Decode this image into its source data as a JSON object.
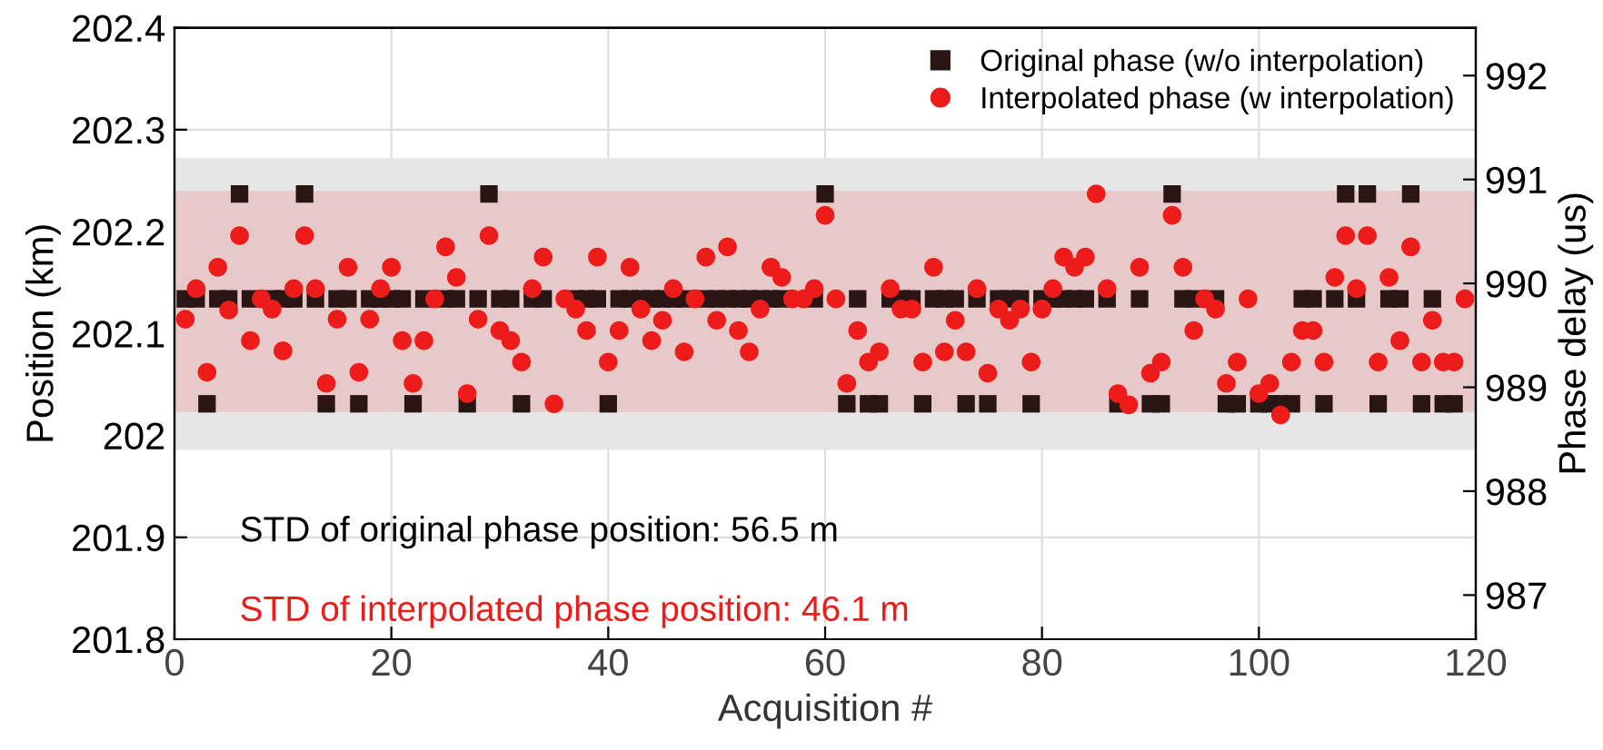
{
  "chart_data": {
    "type": "scatter",
    "xlabel": "Acquisition #",
    "ylabel": "Position (km)",
    "y2label": "Phase delay (us)",
    "x": [
      1,
      2,
      3,
      4,
      5,
      6,
      7,
      8,
      9,
      10,
      11,
      12,
      13,
      14,
      15,
      16,
      17,
      18,
      19,
      20,
      21,
      22,
      23,
      24,
      25,
      26,
      27,
      28,
      29,
      30,
      31,
      32,
      33,
      34,
      35,
      36,
      37,
      38,
      39,
      40,
      41,
      42,
      43,
      44,
      45,
      46,
      47,
      48,
      49,
      50,
      51,
      52,
      53,
      54,
      55,
      56,
      57,
      58,
      59,
      60,
      61,
      62,
      63,
      64,
      65,
      66,
      67,
      68,
      69,
      70,
      71,
      72,
      73,
      74,
      75,
      76,
      77,
      78,
      79,
      80,
      81,
      82,
      83,
      84,
      85,
      86,
      87,
      88,
      89,
      90,
      91,
      92,
      93,
      94,
      95,
      96,
      97,
      98,
      99,
      100,
      101,
      102,
      103,
      104,
      105,
      106,
      107,
      108,
      109,
      110,
      111,
      112,
      113,
      114,
      115,
      116,
      117,
      118,
      119
    ],
    "series": [
      {
        "name": "Original phase (w/o interpolation)",
        "color": "#2a1515",
        "marker": "square",
        "values": [
          202.134,
          202.134,
          202.031,
          202.134,
          202.134,
          202.237,
          202.134,
          null,
          202.134,
          202.134,
          202.134,
          202.237,
          202.134,
          202.031,
          202.134,
          202.134,
          202.031,
          202.134,
          202.134,
          202.134,
          202.134,
          202.031,
          202.134,
          null,
          202.134,
          202.134,
          202.031,
          202.134,
          202.237,
          202.134,
          202.134,
          202.031,
          202.134,
          202.134,
          null,
          null,
          202.134,
          202.134,
          202.134,
          202.031,
          202.134,
          202.134,
          202.134,
          202.134,
          202.134,
          202.134,
          202.134,
          null,
          202.134,
          202.134,
          202.134,
          202.134,
          202.134,
          202.134,
          202.134,
          202.134,
          null,
          null,
          202.134,
          202.237,
          null,
          202.031,
          202.134,
          202.031,
          202.031,
          202.134,
          202.134,
          202.134,
          202.031,
          202.134,
          202.134,
          202.134,
          202.031,
          202.134,
          202.031,
          202.134,
          202.134,
          202.134,
          202.031,
          202.134,
          202.134,
          202.134,
          202.134,
          202.134,
          null,
          202.134,
          202.031,
          null,
          202.134,
          202.031,
          202.031,
          202.237,
          202.134,
          202.134,
          null,
          202.134,
          202.031,
          202.031,
          null,
          202.031,
          202.031,
          202.031,
          202.031,
          202.134,
          202.134,
          202.031,
          202.134,
          202.237,
          202.134,
          202.237,
          202.031,
          202.134,
          202.134,
          202.237,
          202.031,
          202.134,
          202.031,
          202.031,
          null
        ]
      },
      {
        "name": "Interpolated phase (w interpolation)",
        "color": "#ee1b1b",
        "marker": "circle",
        "values": [
          202.114,
          202.144,
          202.062,
          202.165,
          202.123,
          202.196,
          202.093,
          202.134,
          202.124,
          202.083,
          202.144,
          202.196,
          202.144,
          202.051,
          202.114,
          202.165,
          202.062,
          202.114,
          202.144,
          202.165,
          202.093,
          202.051,
          202.093,
          202.134,
          202.185,
          202.155,
          202.041,
          202.114,
          202.196,
          202.103,
          202.093,
          202.072,
          202.144,
          202.175,
          202.031,
          202.134,
          202.124,
          202.103,
          202.175,
          202.072,
          202.103,
          202.165,
          202.124,
          202.093,
          202.113,
          202.144,
          202.082,
          202.134,
          202.175,
          202.113,
          202.185,
          202.103,
          202.082,
          202.124,
          202.165,
          202.155,
          202.134,
          202.134,
          202.144,
          202.216,
          202.134,
          202.051,
          202.103,
          202.072,
          202.082,
          202.144,
          202.124,
          202.124,
          202.072,
          202.165,
          202.082,
          202.113,
          202.082,
          202.144,
          202.061,
          202.124,
          202.113,
          202.124,
          202.072,
          202.124,
          202.144,
          202.175,
          202.165,
          202.175,
          202.237,
          202.144,
          202.041,
          202.03,
          202.165,
          202.061,
          202.072,
          202.216,
          202.165,
          202.103,
          202.134,
          202.124,
          202.051,
          202.072,
          202.134,
          202.041,
          202.051,
          202.02,
          202.072,
          202.103,
          202.103,
          202.072,
          202.155,
          202.196,
          202.144,
          202.196,
          202.072,
          202.155,
          202.093,
          202.185,
          202.072,
          202.113,
          202.072,
          202.072,
          202.134
        ]
      }
    ],
    "xlim": [
      0,
      120
    ],
    "xticks": [
      0,
      20,
      40,
      60,
      80,
      100,
      120
    ],
    "ylim": [
      201.8,
      202.4
    ],
    "yticks": [
      201.8,
      201.9,
      {
        "value": 202.0,
        "label": "202"
      },
      202.1,
      202.2,
      202.3,
      202.4
    ],
    "y2lim": [
      986.575,
      992.46
    ],
    "y2ticks": [
      987,
      988,
      989,
      990,
      991,
      992
    ],
    "bands": [
      {
        "axis": "y",
        "from": 201.986,
        "to": 202.272,
        "color": "#e6e6e6"
      },
      {
        "axis": "y",
        "from": 202.023,
        "to": 202.24,
        "color": "#e8c9c9"
      }
    ],
    "annotations": [
      "STD of original phase position: 56.5 m",
      "STD of interpolated phase position: 46.1 m"
    ],
    "grid": true,
    "legend": "top right"
  }
}
